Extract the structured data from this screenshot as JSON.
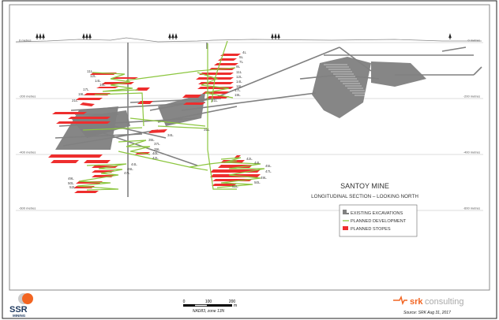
{
  "title": "SANTOY MINE",
  "subtitle": "LONGITUDINAL SECTION – LOOKING NORTH",
  "depth_labels": [
    "0 metres",
    "-200 metres",
    "-400 metres",
    "-600 metres"
  ],
  "legend": [
    {
      "label": "EXISTING EXCAVATIONS",
      "color": "#808080"
    },
    {
      "label": "PLANNED DEVELOPMENT",
      "color": "#8cc63f"
    },
    {
      "label": "PLANNED STOPES",
      "color": "#ee2e2e"
    }
  ],
  "levels": {
    "upper_west": [
      "11L",
      "12L",
      "14L",
      "16L",
      "17L",
      "19L",
      "21L"
    ],
    "upper_east": [
      "4L",
      "5L",
      "7L",
      "9L",
      "11L",
      "12L",
      "14L",
      "16L",
      "17L",
      "19L",
      "21L"
    ],
    "central": [
      "31L",
      "34L"
    ],
    "lower_west": [
      "35L",
      "37L",
      "39L",
      "40L",
      "42L",
      "44L",
      "45L",
      "47L",
      "49L",
      "50L",
      "52L"
    ],
    "lower_east": [
      "42L",
      "44L",
      "45L",
      "47L",
      "49L",
      "50L",
      "52L"
    ]
  },
  "scale_bar": {
    "ticks": [
      "0",
      "100",
      "200"
    ],
    "unit": "m",
    "projection": "NAD83, zone 13N"
  },
  "logos": {
    "left": "SSR MINING",
    "right_bold": "srk",
    "right_light": "consulting"
  },
  "source": "Source: SRK  Aug 31, 2017"
}
